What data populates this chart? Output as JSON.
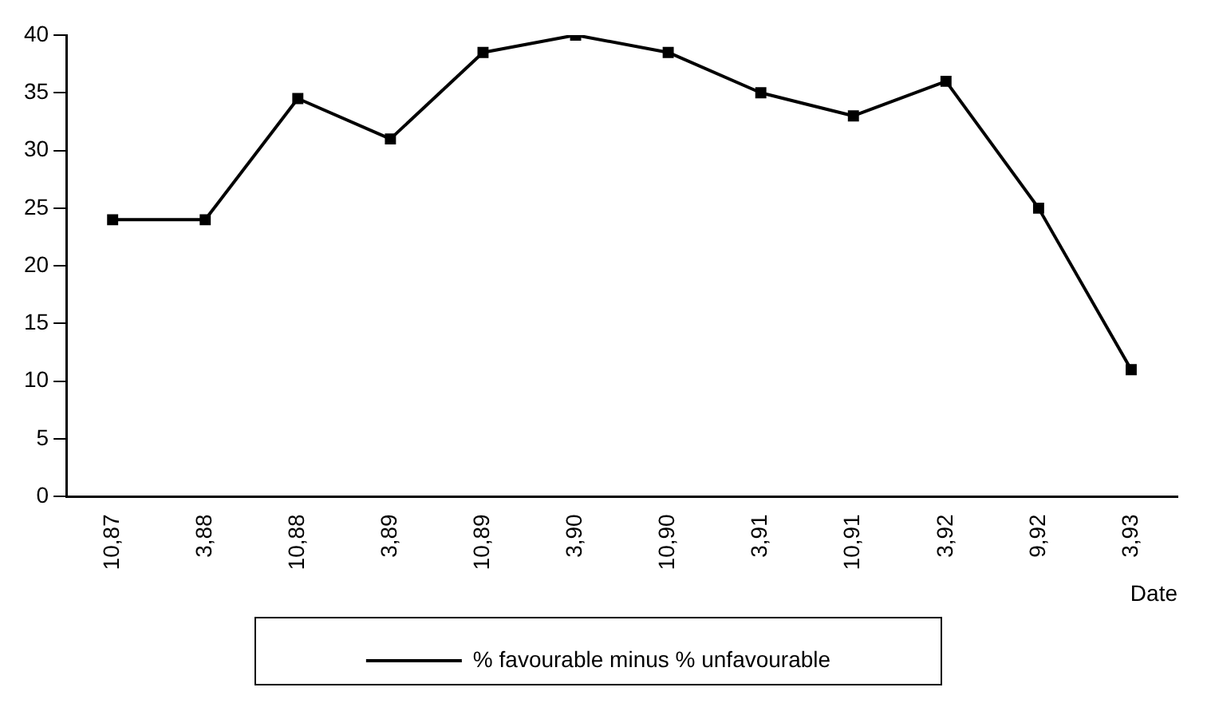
{
  "chart_data": {
    "type": "line",
    "xlabel": "Date",
    "categories": [
      "10,87",
      "3,88",
      "10,88",
      "3,89",
      "10,89",
      "3,90",
      "10,90",
      "3,91",
      "10,91",
      "3,92",
      "9,92",
      "3,93"
    ],
    "series": [
      {
        "name": "% favourable minus % unfavourable",
        "color": "#000000",
        "values": [
          24,
          24,
          34.5,
          31,
          38.5,
          40,
          38.5,
          35,
          33,
          36,
          25,
          11
        ]
      }
    ],
    "ylim": [
      0,
      40
    ],
    "yticks": [
      0,
      5,
      10,
      15,
      20,
      25,
      30,
      35,
      40
    ],
    "grid": false,
    "legend": "bottom",
    "marker": "square",
    "line_style": "solid"
  }
}
